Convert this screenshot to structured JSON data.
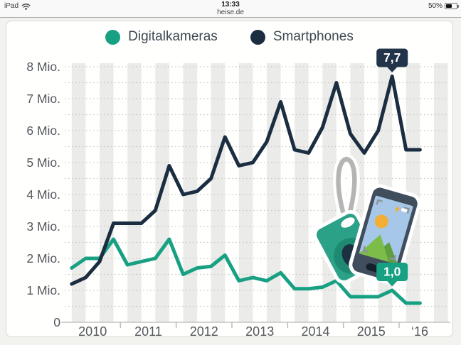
{
  "status_bar": {
    "device": "iPad",
    "time": "13:33",
    "site": "heise.de",
    "battery_percent": "50%"
  },
  "legend": [
    {
      "label": "Digitalkameras",
      "color": "#18a083"
    },
    {
      "label": "Smartphones",
      "color": "#1b2d40"
    }
  ],
  "chart_data": {
    "type": "line",
    "title": "",
    "xlabel": "",
    "ylabel": "Mio.",
    "ylim": [
      0,
      8
    ],
    "grid": "horizontal dotted every 0.5 Mio; vertical quarter stripes",
    "legend_position": "top",
    "x": [
      "2010 Q1",
      "2010 Q2",
      "2010 Q3",
      "2010 Q4",
      "2011 Q1",
      "2011 Q2",
      "2011 Q3",
      "2011 Q4",
      "2012 Q1",
      "2012 Q2",
      "2012 Q3",
      "2012 Q4",
      "2013 Q1",
      "2013 Q2",
      "2013 Q3",
      "2013 Q4",
      "2014 Q1",
      "2014 Q2",
      "2014 Q3",
      "2014 Q4",
      "2015 Q1",
      "2015 Q2",
      "2015 Q3",
      "2015 Q4",
      "2016 Q1",
      "2016 Q2"
    ],
    "series": [
      {
        "name": "Digitalkameras",
        "color": "#18a083",
        "values": [
          1.7,
          2.0,
          2.0,
          2.6,
          1.8,
          1.9,
          2.0,
          2.6,
          1.5,
          1.7,
          1.75,
          2.1,
          1.3,
          1.4,
          1.3,
          1.55,
          1.05,
          1.05,
          1.1,
          1.3,
          0.8,
          0.8,
          0.8,
          1.0,
          0.6,
          0.6
        ]
      },
      {
        "name": "Smartphones",
        "color": "#1b2d40",
        "values": [
          1.2,
          1.4,
          1.9,
          3.1,
          3.1,
          3.1,
          3.5,
          4.9,
          4.0,
          4.1,
          4.5,
          5.8,
          4.9,
          5.0,
          5.65,
          6.9,
          5.4,
          5.3,
          6.1,
          7.5,
          5.9,
          5.3,
          6.0,
          7.7,
          5.4,
          5.4
        ]
      }
    ],
    "ytick_labels": [
      "0",
      "1 Mio.",
      "2 Mio.",
      "3 Mio.",
      "4 Mio.",
      "5 Mio.",
      "6 Mio.",
      "7 Mio.",
      "8 Mio."
    ],
    "xtick_labels": [
      "2010",
      "2011",
      "2012",
      "2013",
      "2014",
      "2015",
      "‘16"
    ],
    "annotations": [
      {
        "series": "Smartphones",
        "x": "2015 Q4",
        "value": 7.7,
        "label": "7,7",
        "color": "#213449"
      },
      {
        "series": "Digitalkameras",
        "x": "2015 Q4",
        "value": 1.0,
        "label": "1,0",
        "color": "#18a083"
      }
    ]
  }
}
